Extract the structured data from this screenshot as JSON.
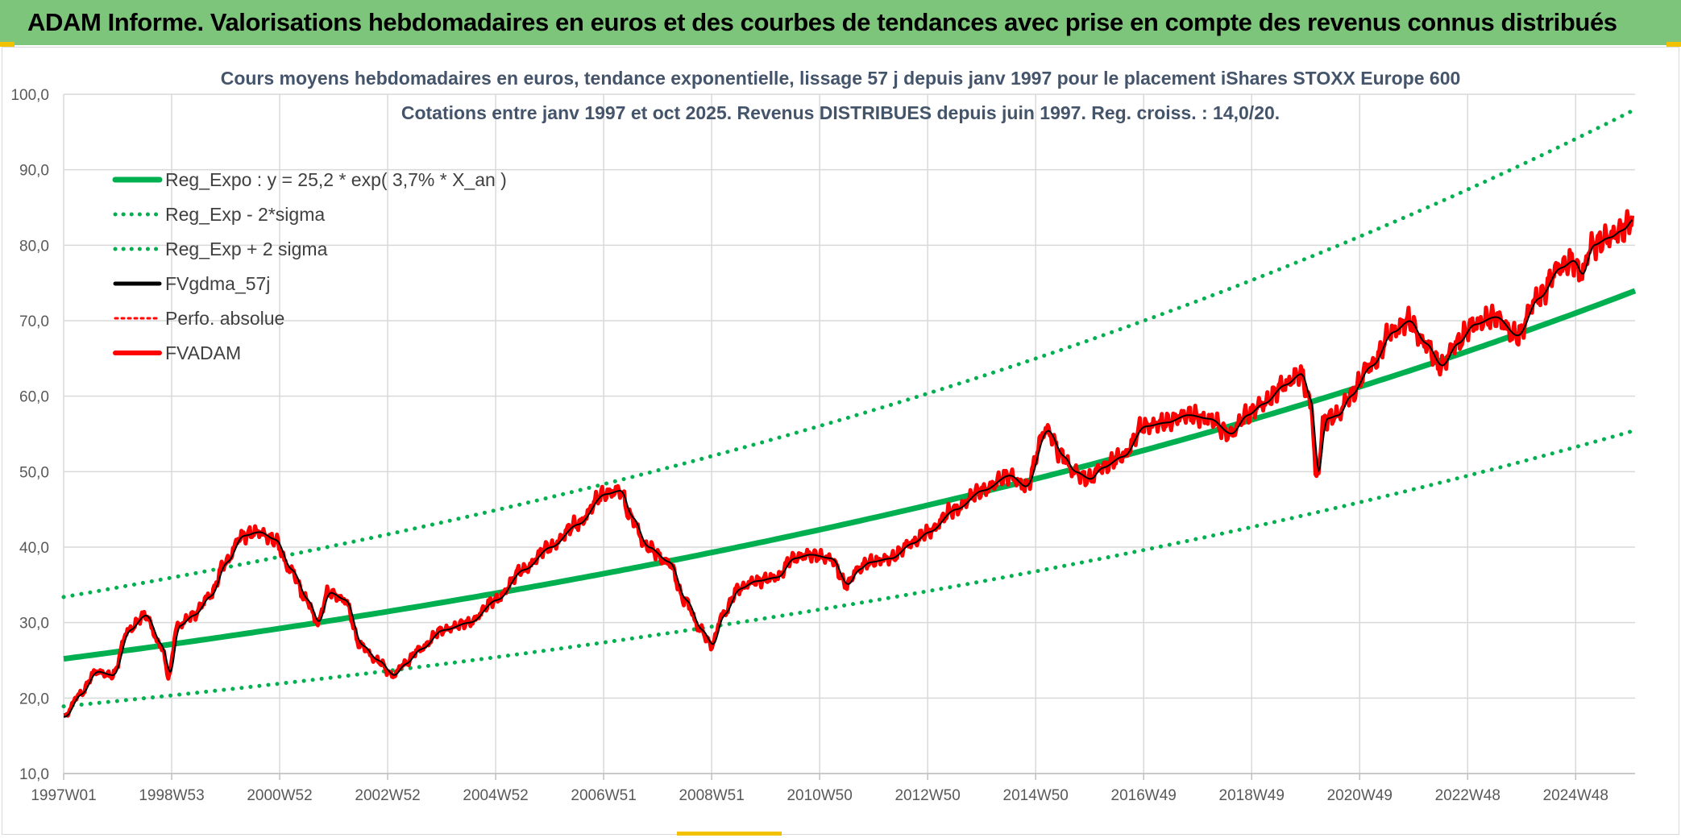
{
  "header": {
    "title": "ADAM Informe. Valorisations hebdomadaires en euros et des courbes de tendances avec prise en compte des revenus connus distribués"
  },
  "colors": {
    "header_bg": "#7dc57a",
    "trend_green": "#00b050",
    "price_red": "#ff0000",
    "smooth_black": "#000000",
    "grid": "#d9d9d9",
    "text_gray": "#595959",
    "title_blue": "#44546a"
  },
  "chart_data": {
    "type": "line",
    "title_line1": "Cours moyens hebdomadaires en euros, tendance exponentielle, lissage 57 j depuis janv 1997 pour le placement iShares STOXX Europe 600",
    "title_line2": "Cotations entre janv 1997 et oct 2025. Revenus DISTRIBUES depuis juin 1997. Reg. croiss. : 14,0/20.",
    "xlim": [
      1997.0,
      2026.1
    ],
    "ylim": [
      10,
      100
    ],
    "y_ticks": [
      10,
      20,
      30,
      40,
      50,
      60,
      70,
      80,
      90,
      100
    ],
    "y_tick_labels": [
      "10,0",
      "20,0",
      "30,0",
      "40,0",
      "50,0",
      "60,0",
      "70,0",
      "80,0",
      "90,0",
      "100,0"
    ],
    "x_ticks": [
      1997.0,
      1999.0,
      2001.0,
      2003.0,
      2005.0,
      2007.0,
      2009.0,
      2011.0,
      2013.0,
      2015.0,
      2017.0,
      2019.0,
      2021.0,
      2023.0,
      2025.0
    ],
    "x_tick_labels": [
      "1997W01",
      "1998W53",
      "2000W52",
      "2002W52",
      "2004W52",
      "2006W51",
      "2008W51",
      "2010W50",
      "2012W50",
      "2014W50",
      "2016W49",
      "2018W49",
      "2020W49",
      "2022W48",
      "2024W48"
    ],
    "trend": {
      "a": 25.2,
      "rate": 0.037,
      "x0": 1997.0
    },
    "series": [
      {
        "name": "Reg_Expo : y = 25,2 * exp( 3,7% *  X_an )",
        "style": "trend",
        "color": "#00b050"
      },
      {
        "name": "Reg_Exp - 2*sigma",
        "style": "trend_low",
        "factor": 0.75,
        "color": "#00b050"
      },
      {
        "name": "Reg_Exp + 2 sigma",
        "style": "trend_high",
        "factor": 1.325,
        "color": "#00b050"
      },
      {
        "name": "FVgdma_57j",
        "style": "smooth",
        "color": "#000000"
      },
      {
        "name": "Perfo. absolue",
        "style": "dotted_red",
        "color": "#ff0000"
      },
      {
        "name": "FVADAM",
        "style": "price",
        "color": "#ff0000",
        "x": [
          1997.0,
          1997.3,
          1997.6,
          1997.9,
          1998.2,
          1998.5,
          1998.8,
          1998.95,
          1999.1,
          1999.4,
          1999.7,
          2000.0,
          2000.3,
          2000.6,
          2000.9,
          2001.2,
          2001.5,
          2001.7,
          2001.9,
          2002.2,
          2002.5,
          2002.8,
          2003.1,
          2003.3,
          2003.6,
          2004.0,
          2004.5,
          2005.0,
          2005.5,
          2006.0,
          2006.5,
          2007.0,
          2007.3,
          2007.5,
          2007.8,
          2008.2,
          2008.5,
          2008.8,
          2009.0,
          2009.2,
          2009.5,
          2009.8,
          2010.2,
          2010.5,
          2010.8,
          2011.2,
          2011.5,
          2011.7,
          2011.9,
          2012.3,
          2012.7,
          2013.0,
          2013.5,
          2014.0,
          2014.5,
          2014.8,
          2015.2,
          2015.5,
          2015.7,
          2016.0,
          2016.2,
          2016.6,
          2017.0,
          2017.4,
          2017.8,
          2018.2,
          2018.6,
          2018.9,
          2019.2,
          2019.6,
          2019.9,
          2020.1,
          2020.2,
          2020.35,
          2020.6,
          2020.8,
          2021.2,
          2021.6,
          2021.9,
          2022.2,
          2022.5,
          2022.8,
          2023.1,
          2023.5,
          2023.9,
          2024.3,
          2024.7,
          2024.95,
          2025.1,
          2025.3,
          2025.6,
          2025.85,
          2026.05
        ],
        "values": [
          17.5,
          20.5,
          23.5,
          23.0,
          29.0,
          31.0,
          27.0,
          23.0,
          29.5,
          31.0,
          33.5,
          38.0,
          41.5,
          42.0,
          41.0,
          37.0,
          33.0,
          30.0,
          34.0,
          33.0,
          27.0,
          25.0,
          23.0,
          24.5,
          26.5,
          29.0,
          30.0,
          33.0,
          37.0,
          40.0,
          43.0,
          47.0,
          47.5,
          44.0,
          40.0,
          38.0,
          33.0,
          29.0,
          27.0,
          31.0,
          34.5,
          35.5,
          36.0,
          38.5,
          39.0,
          38.5,
          35.0,
          37.0,
          38.0,
          38.5,
          40.5,
          42.0,
          45.0,
          47.5,
          49.5,
          48.0,
          55.5,
          52.0,
          50.0,
          49.0,
          50.5,
          52.0,
          56.0,
          56.5,
          57.5,
          57.0,
          55.0,
          57.5,
          59.0,
          61.5,
          63.0,
          59.0,
          49.0,
          57.0,
          57.5,
          60.0,
          64.0,
          68.5,
          70.0,
          67.0,
          64.0,
          67.0,
          69.5,
          70.5,
          68.0,
          73.0,
          77.0,
          78.0,
          76.0,
          80.0,
          81.0,
          82.0,
          83.5
        ]
      }
    ]
  }
}
